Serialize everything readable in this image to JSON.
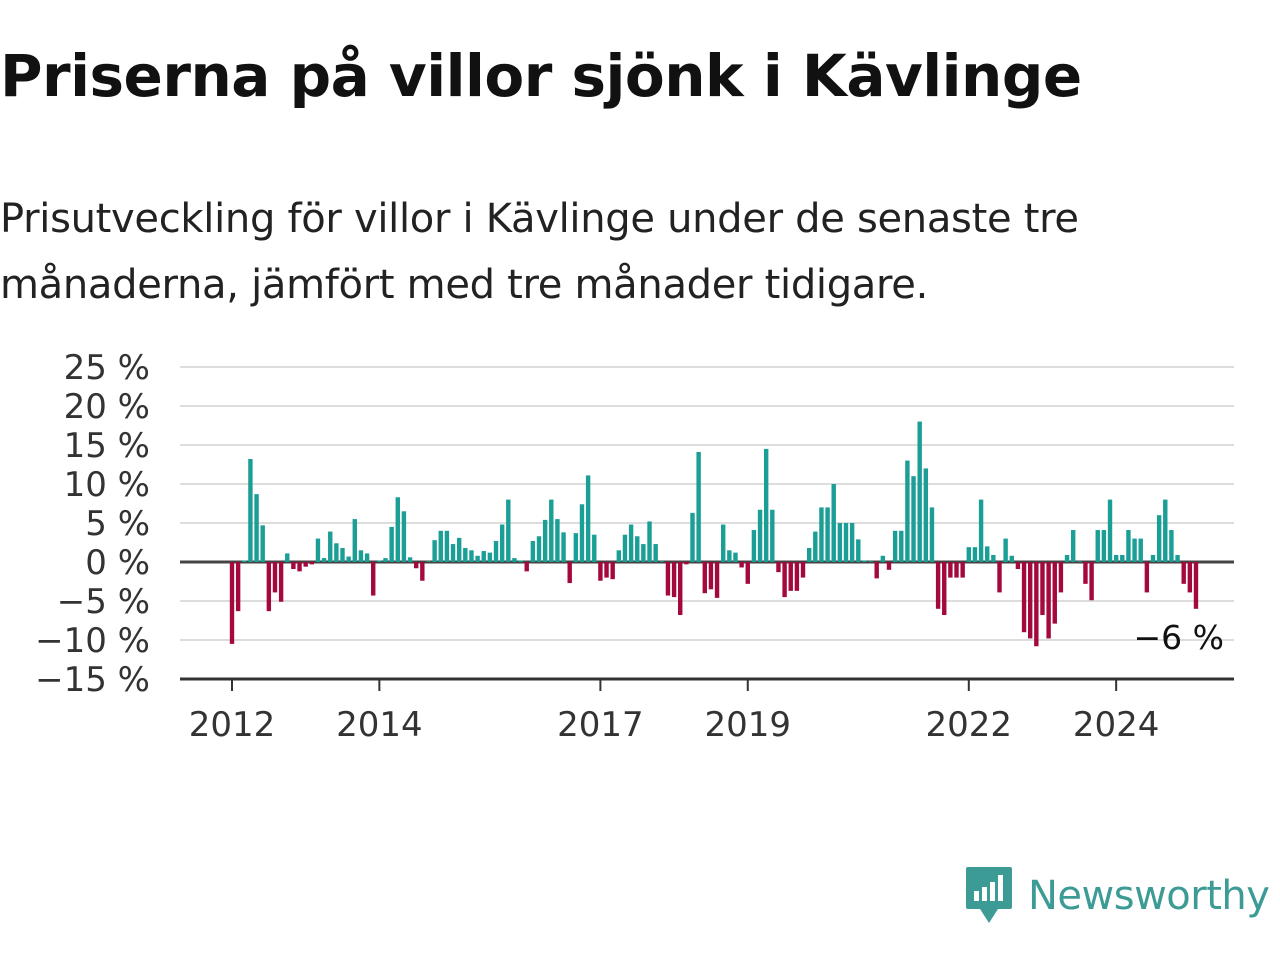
{
  "title": "Priserna på villor sjönk i Kävlinge",
  "subtitle": "Prisutveckling för villor i Kävlinge under de senaste tre månaderna, jämfört med tre månader tidigare.",
  "brand": {
    "name": "Newsworthy",
    "color": "#3d9b95"
  },
  "colors": {
    "positive": "#1a9e95",
    "negative": "#a3093c",
    "grid": "#dddddd",
    "axis": "#444444"
  },
  "chart_data": {
    "type": "bar",
    "title": "",
    "xlabel": "",
    "ylabel": "",
    "ylim": [
      -15,
      25
    ],
    "y_ticks": [
      25,
      20,
      15,
      10,
      5,
      0,
      -5,
      -10,
      -15
    ],
    "y_tick_labels": [
      "25 %",
      "20 %",
      "15 %",
      "10 %",
      "5 %",
      "0 %",
      "−5 %",
      "−10 %",
      "−15 %"
    ],
    "x_tick_labels": [
      "2012",
      "2014",
      "2017",
      "2019",
      "2022",
      "2024"
    ],
    "x_tick_dates": [
      "2012-01",
      "2014-01",
      "2017-01",
      "2019-01",
      "2022-01",
      "2024-01"
    ],
    "start": "2012-01",
    "end_label": "−6 %",
    "grid": true,
    "values": [
      -10.5,
      -6.3,
      0.2,
      13.2,
      8.7,
      4.7,
      -6.3,
      -3.9,
      -5.1,
      1.1,
      -0.9,
      -1.2,
      -0.6,
      -0.3,
      3.0,
      0.5,
      3.9,
      2.4,
      1.8,
      0.7,
      5.5,
      1.5,
      1.1,
      -4.3,
      0.2,
      0.5,
      4.5,
      8.3,
      6.5,
      0.6,
      -0.8,
      -2.4,
      0.1,
      2.8,
      4.0,
      4.0,
      2.3,
      3.1,
      1.8,
      1.5,
      0.8,
      1.4,
      1.2,
      2.7,
      4.8,
      8.0,
      0.5,
      0.2,
      -1.2,
      2.7,
      3.3,
      5.4,
      8.0,
      5.5,
      3.8,
      -2.7,
      3.7,
      7.4,
      11.1,
      3.5,
      -2.4,
      -2.0,
      -2.2,
      1.5,
      3.5,
      4.8,
      3.3,
      2.3,
      5.2,
      2.3,
      0.1,
      -4.3,
      -4.5,
      -6.8,
      -0.3,
      6.3,
      14.1,
      -4.0,
      -3.5,
      -4.6,
      4.8,
      1.5,
      1.2,
      -0.7,
      -2.8,
      4.1,
      6.7,
      14.5,
      6.7,
      -1.3,
      -4.5,
      -3.7,
      -3.7,
      -2.0,
      1.8,
      3.9,
      7.0,
      7.0,
      10.0,
      5.0,
      5.0,
      5.0,
      2.9,
      0.2,
      0.1,
      -2.1,
      0.8,
      -1.0,
      4.0,
      4.0,
      13.0,
      11.0,
      18.0,
      12.0,
      7.0,
      -6.0,
      -6.8,
      -2.0,
      -2.0,
      -2.0,
      1.9,
      1.9,
      8.0,
      2.0,
      0.9,
      -3.9,
      3.0,
      0.8,
      -0.9,
      -9.0,
      -9.8,
      -10.8,
      -6.8,
      -9.8,
      -7.9,
      -3.9,
      0.9,
      4.1,
      0.1,
      -2.8,
      -4.9,
      4.1,
      4.1,
      8.0,
      0.9,
      0.9,
      4.1,
      3.0,
      3.0,
      -3.9,
      0.9,
      6.0,
      8.0,
      4.1,
      0.9,
      -2.8,
      -3.9,
      -6.0
    ]
  }
}
